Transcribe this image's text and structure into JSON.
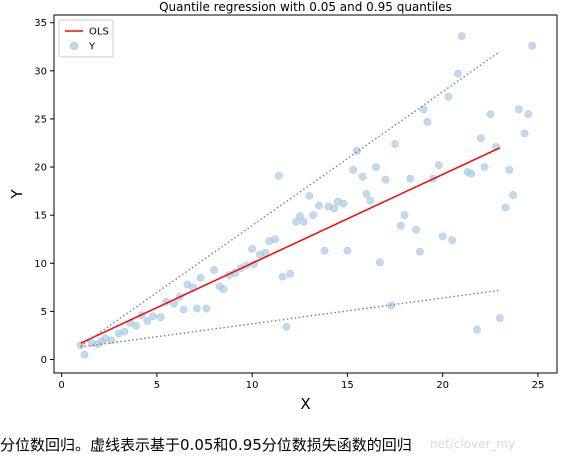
{
  "chart_data": {
    "type": "scatter",
    "title": "Quantile regression with 0.05 and 0.95 quantiles",
    "xlabel": "X",
    "ylabel": "Y",
    "xlim": [
      -0.4,
      26.0
    ],
    "ylim": [
      -1.4,
      35.8
    ],
    "xticks": [
      0,
      5,
      10,
      15,
      20,
      25
    ],
    "yticks": [
      0,
      5,
      10,
      15,
      20,
      25,
      30,
      35
    ],
    "grid": false,
    "legend_position": "top-left",
    "legend": [
      {
        "label": "OLS",
        "kind": "line",
        "color": "#ff0000"
      },
      {
        "label": "Y",
        "kind": "marker",
        "color": "#aacbe6"
      }
    ],
    "series": [
      {
        "name": "Y",
        "kind": "scatter",
        "color": "#aacbe6",
        "points": [
          [
            1.0,
            1.5
          ],
          [
            1.2,
            0.5
          ],
          [
            1.6,
            1.7
          ],
          [
            1.9,
            1.6
          ],
          [
            2.1,
            1.9
          ],
          [
            2.3,
            2.2
          ],
          [
            2.6,
            2.0
          ],
          [
            3.0,
            2.7
          ],
          [
            3.3,
            2.9
          ],
          [
            3.6,
            3.8
          ],
          [
            3.9,
            3.5
          ],
          [
            4.2,
            4.6
          ],
          [
            4.5,
            4.0
          ],
          [
            4.8,
            4.5
          ],
          [
            5.2,
            4.4
          ],
          [
            5.5,
            6.0
          ],
          [
            5.9,
            5.8
          ],
          [
            6.2,
            6.5
          ],
          [
            6.4,
            5.2
          ],
          [
            6.6,
            7.8
          ],
          [
            6.9,
            7.5
          ],
          [
            7.1,
            5.3
          ],
          [
            7.3,
            8.5
          ],
          [
            7.6,
            5.3
          ],
          [
            8.0,
            9.3
          ],
          [
            8.3,
            7.6
          ],
          [
            8.5,
            7.3
          ],
          [
            8.8,
            8.8
          ],
          [
            9.1,
            9.0
          ],
          [
            9.4,
            9.5
          ],
          [
            9.7,
            9.8
          ],
          [
            10.0,
            11.5
          ],
          [
            10.1,
            9.9
          ],
          [
            10.4,
            10.9
          ],
          [
            10.7,
            11.1
          ],
          [
            10.9,
            12.3
          ],
          [
            11.2,
            12.5
          ],
          [
            11.4,
            19.1
          ],
          [
            11.6,
            8.6
          ],
          [
            11.8,
            3.4
          ],
          [
            12.0,
            8.9
          ],
          [
            12.3,
            14.3
          ],
          [
            12.5,
            14.9
          ],
          [
            12.7,
            14.3
          ],
          [
            13.0,
            17.0
          ],
          [
            13.2,
            15.0
          ],
          [
            13.5,
            16.0
          ],
          [
            13.8,
            11.3
          ],
          [
            14.0,
            15.9
          ],
          [
            14.3,
            15.7
          ],
          [
            14.5,
            16.4
          ],
          [
            14.8,
            16.2
          ],
          [
            15.0,
            11.3
          ],
          [
            15.3,
            19.7
          ],
          [
            15.5,
            21.7
          ],
          [
            15.8,
            19.0
          ],
          [
            16.0,
            17.2
          ],
          [
            16.2,
            16.5
          ],
          [
            16.5,
            20.0
          ],
          [
            16.7,
            10.1
          ],
          [
            17.0,
            18.7
          ],
          [
            17.3,
            5.6
          ],
          [
            17.5,
            22.4
          ],
          [
            17.8,
            13.9
          ],
          [
            18.0,
            15.0
          ],
          [
            18.3,
            18.8
          ],
          [
            18.6,
            13.5
          ],
          [
            18.8,
            11.2
          ],
          [
            19.0,
            26.0
          ],
          [
            19.2,
            24.7
          ],
          [
            19.5,
            18.8
          ],
          [
            19.8,
            20.2
          ],
          [
            20.0,
            12.8
          ],
          [
            20.3,
            27.3
          ],
          [
            20.5,
            12.4
          ],
          [
            20.8,
            29.7
          ],
          [
            21.0,
            33.6
          ],
          [
            21.3,
            19.5
          ],
          [
            21.5,
            19.3
          ],
          [
            21.8,
            3.1
          ],
          [
            22.0,
            23.0
          ],
          [
            22.2,
            20.0
          ],
          [
            22.5,
            25.5
          ],
          [
            22.8,
            22.1
          ],
          [
            23.0,
            4.3
          ],
          [
            23.3,
            15.8
          ],
          [
            23.5,
            19.7
          ],
          [
            23.7,
            17.1
          ],
          [
            24.0,
            26.0
          ],
          [
            24.3,
            23.5
          ],
          [
            24.5,
            25.5
          ],
          [
            24.7,
            32.6
          ]
        ]
      },
      {
        "name": "OLS",
        "kind": "line",
        "color": "#ff0000",
        "style": "solid",
        "points": [
          [
            1.0,
            1.7
          ],
          [
            23.0,
            22.0
          ]
        ]
      },
      {
        "kind": "line",
        "color": "#7f7f7f",
        "style": "dotted",
        "points": [
          [
            1.0,
            1.4
          ],
          [
            23.0,
            32.0
          ]
        ]
      },
      {
        "kind": "line",
        "color": "#7f7f7f",
        "style": "dotted",
        "points": [
          [
            1.0,
            1.3
          ],
          [
            23.0,
            7.2
          ]
        ]
      }
    ]
  },
  "caption": "分位数回归。虚线表示基于0.05和0.95分位数损失函数的回归",
  "watermark": "net/clover_my"
}
